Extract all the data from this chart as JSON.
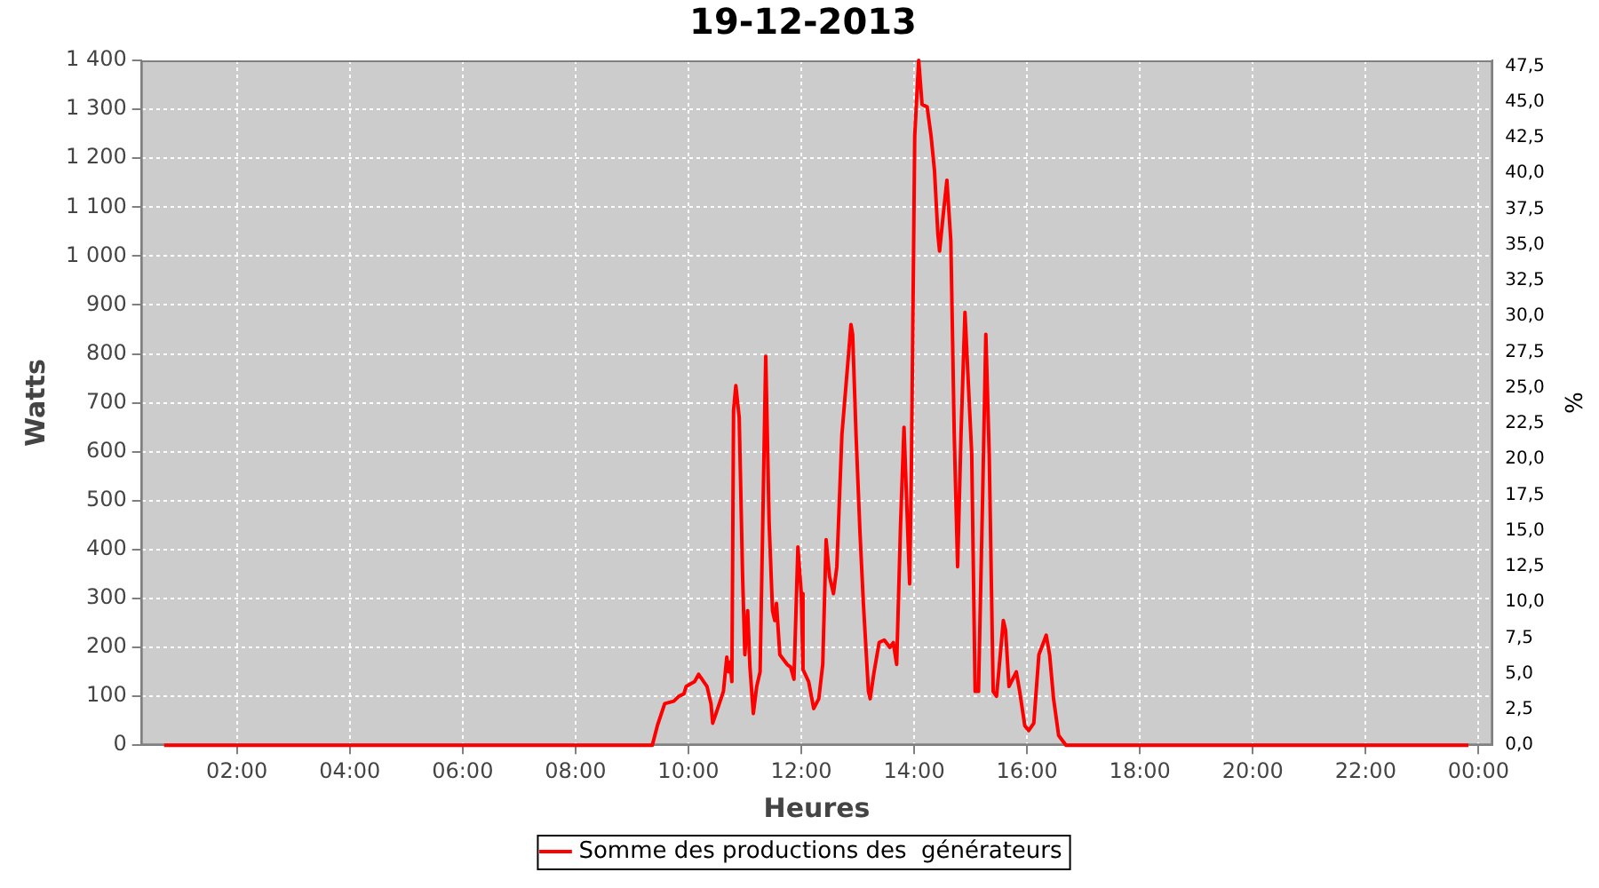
{
  "chart_data": {
    "type": "line",
    "title": "19-12-2013",
    "xlabel": "Heures",
    "ylabel": "Watts",
    "y2label": "%",
    "x": [
      0.71,
      9.36,
      9.45,
      9.58,
      9.74,
      9.83,
      9.92,
      9.96,
      10.11,
      10.18,
      10.33,
      10.4,
      10.43,
      10.49,
      10.62,
      10.68,
      10.71,
      10.74,
      10.77,
      10.8,
      10.84,
      10.9,
      10.96,
      11.0,
      11.05,
      11.09,
      11.15,
      11.21,
      11.27,
      11.37,
      11.43,
      11.49,
      11.53,
      11.56,
      11.62,
      11.75,
      11.81,
      11.87,
      11.94,
      12.0,
      12.03,
      12.13,
      12.22,
      12.31,
      12.38,
      12.44,
      12.5,
      12.57,
      12.63,
      12.72,
      12.82,
      12.88,
      12.91,
      12.97,
      13.04,
      13.1,
      13.19,
      13.22,
      13.29,
      13.38,
      13.47,
      13.57,
      13.63,
      13.69,
      13.76,
      13.82,
      13.92,
      13.95,
      14.01,
      14.08,
      14.14,
      14.23,
      14.3,
      14.36,
      14.42,
      14.45,
      14.52,
      14.58,
      14.65,
      14.71,
      14.77,
      14.83,
      14.9,
      14.96,
      15.02,
      15.08,
      15.14,
      15.21,
      15.27,
      15.33,
      15.4,
      15.46,
      15.58,
      15.62,
      15.68,
      15.81,
      15.87,
      15.96,
      16.03,
      16.12,
      16.21,
      16.34,
      16.4,
      16.47,
      16.56,
      16.69,
      23.82
    ],
    "series": [
      {
        "name": "Somme des productions des  générateurs",
        "color": "#ff0000",
        "values": [
          0,
          0,
          40,
          85,
          90,
          100,
          105,
          120,
          130,
          145,
          120,
          85,
          45,
          65,
          110,
          180,
          150,
          170,
          130,
          685,
          735,
          670,
          345,
          185,
          275,
          160,
          65,
          120,
          150,
          795,
          455,
          275,
          255,
          290,
          185,
          165,
          160,
          135,
          405,
          310,
          155,
          130,
          75,
          95,
          165,
          420,
          345,
          310,
          365,
          635,
          775,
          860,
          840,
          635,
          435,
          290,
          110,
          95,
          150,
          210,
          215,
          200,
          210,
          165,
          455,
          650,
          330,
          560,
          1245,
          1400,
          1310,
          1305,
          1245,
          1175,
          1045,
          1010,
          1090,
          1155,
          1030,
          635,
          365,
          635,
          885,
          740,
          595,
          110,
          110,
          490,
          840,
          595,
          110,
          100,
          255,
          235,
          120,
          150,
          110,
          40,
          30,
          45,
          185,
          225,
          185,
          95,
          20,
          0,
          0
        ]
      }
    ],
    "xlim": [
      0.3,
      24.25
    ],
    "xticks": [
      {
        "value": 2,
        "label": "02:00"
      },
      {
        "value": 4,
        "label": "04:00"
      },
      {
        "value": 6,
        "label": "06:00"
      },
      {
        "value": 8,
        "label": "08:00"
      },
      {
        "value": 10,
        "label": "10:00"
      },
      {
        "value": 12,
        "label": "12:00"
      },
      {
        "value": 14,
        "label": "14:00"
      },
      {
        "value": 16,
        "label": "16:00"
      },
      {
        "value": 18,
        "label": "18:00"
      },
      {
        "value": 20,
        "label": "20:00"
      },
      {
        "value": 22,
        "label": "22:00"
      },
      {
        "value": 24,
        "label": "00:00"
      }
    ],
    "ylim": [
      0,
      1400
    ],
    "yticks": [
      0,
      100,
      200,
      300,
      400,
      500,
      600,
      700,
      800,
      900,
      {
        "value": 1000,
        "label": "1 000"
      },
      {
        "value": 1100,
        "label": "1 100"
      },
      {
        "value": 1200,
        "label": "1 200"
      },
      {
        "value": 1300,
        "label": "1 300"
      },
      {
        "value": 1400,
        "label": "1 400"
      }
    ],
    "y2lim": [
      0,
      47.9
    ],
    "y2ticks": [
      {
        "value": 0,
        "label": "0,0"
      },
      {
        "value": 2.5,
        "label": "2,5"
      },
      {
        "value": 5,
        "label": "5,0"
      },
      {
        "value": 7.5,
        "label": "7,5"
      },
      {
        "value": 10,
        "label": "10,0"
      },
      {
        "value": 12.5,
        "label": "12,5"
      },
      {
        "value": 15,
        "label": "15,0"
      },
      {
        "value": 17.5,
        "label": "17,5"
      },
      {
        "value": 20,
        "label": "20,0"
      },
      {
        "value": 22.5,
        "label": "22,5"
      },
      {
        "value": 25,
        "label": "25,0"
      },
      {
        "value": 27.5,
        "label": "27,5"
      },
      {
        "value": 30,
        "label": "30,0"
      },
      {
        "value": 32.5,
        "label": "32,5"
      },
      {
        "value": 35,
        "label": "35,0"
      },
      {
        "value": 37.5,
        "label": "37,5"
      },
      {
        "value": 40,
        "label": "40,0"
      },
      {
        "value": 42.5,
        "label": "42,5"
      },
      {
        "value": 45,
        "label": "45,0"
      },
      {
        "value": 47.5,
        "label": "47,5"
      }
    ],
    "grid": true,
    "legend": "bottom",
    "marker": "none",
    "line_style": "solid"
  }
}
